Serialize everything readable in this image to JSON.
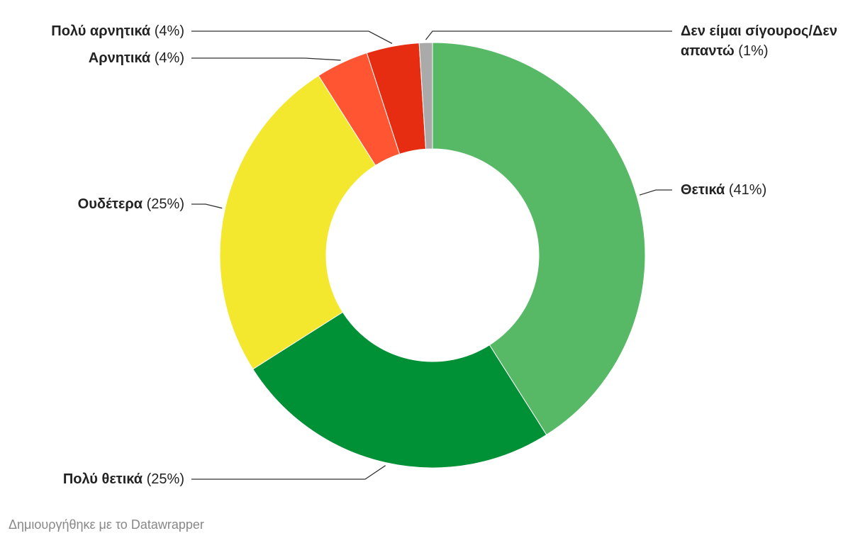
{
  "chart_data": {
    "type": "donut",
    "categories": [
      "Θετικά",
      "Πολύ θετικά",
      "Ουδέτερα",
      "Αρνητικά",
      "Πολύ αρνητικά",
      "Δεν είμαι σίγουρος/Δεν απαντώ"
    ],
    "values": [
      41,
      25,
      25,
      4,
      4,
      1
    ],
    "value_labels": [
      "(41%)",
      "(25%)",
      "(25%)",
      "(4%)",
      "(4%)",
      "(1%)"
    ],
    "colors": [
      "#57b866",
      "#009035",
      "#f4e82e",
      "#ff5533",
      "#e62d11",
      "#aaaaaa"
    ],
    "footer": "Δημιουργήθηκε με το Datawrapper"
  }
}
